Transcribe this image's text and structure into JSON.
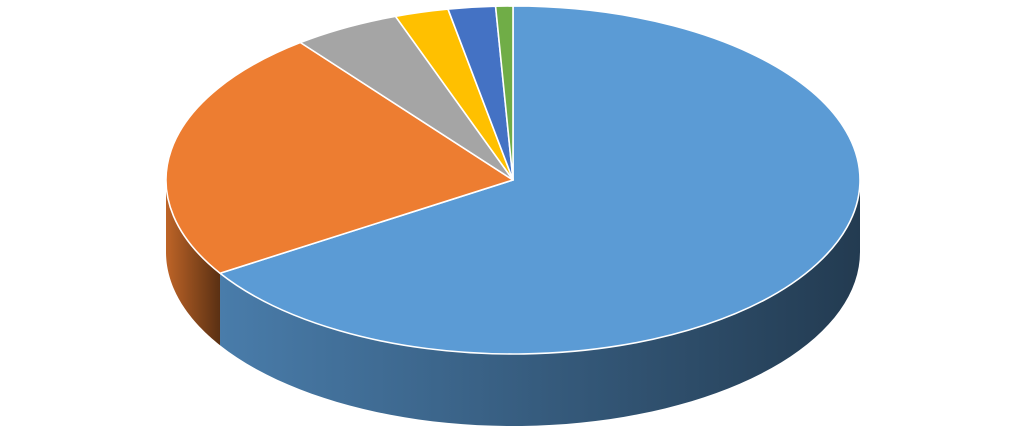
{
  "chart_data": {
    "type": "pie",
    "style": "3d",
    "title": "",
    "legend": "none",
    "data_labels": false,
    "start": "top",
    "direction": "clockwise",
    "series": [
      {
        "values": [
          66.0,
          23.5,
          5.0,
          2.5,
          2.2,
          0.8
        ],
        "colors": [
          "#5b9bd5",
          "#ed7d31",
          "#a5a5a5",
          "#ffc000",
          "#4472c4",
          "#70ad47"
        ]
      }
    ]
  }
}
